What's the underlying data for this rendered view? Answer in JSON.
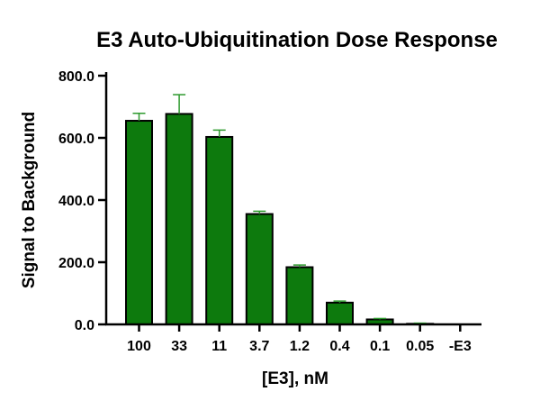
{
  "chart_data": {
    "type": "bar",
    "title": "E3 Auto-Ubiquitination Dose Response",
    "xlabel": "[E3], nM",
    "ylabel": "Signal to Background",
    "categories": [
      "100",
      "33",
      "11",
      "3.7",
      "1.2",
      "0.4",
      "0.1",
      "0.05",
      "-E3"
    ],
    "values": [
      655,
      677,
      603,
      355,
      184,
      70,
      16,
      2,
      0
    ],
    "error_bars": [
      24,
      62,
      22,
      9,
      7,
      5,
      3,
      2,
      0
    ],
    "ylim": [
      0,
      800
    ],
    "yticks": [
      0,
      200,
      400,
      600,
      800
    ],
    "ytick_labels": [
      "0.0",
      "200.0",
      "400.0",
      "600.0",
      "800.0"
    ],
    "grid": false,
    "colors": {
      "bar_fill": "#0d7a0d",
      "bar_stroke": "#000000",
      "error_bar": "#2e9a2e",
      "axis": "#000000"
    }
  }
}
